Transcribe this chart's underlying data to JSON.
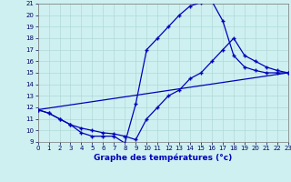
{
  "title": "Graphe des températures (°c)",
  "bg_color": "#cef0f0",
  "line_color": "#0000bb",
  "grid_color": "#b0d8d8",
  "xlim": [
    0,
    23
  ],
  "ylim": [
    9,
    21
  ],
  "xticks": [
    0,
    1,
    2,
    3,
    4,
    5,
    6,
    7,
    8,
    9,
    10,
    11,
    12,
    13,
    14,
    15,
    16,
    17,
    18,
    19,
    20,
    21,
    22,
    23
  ],
  "yticks": [
    9,
    10,
    11,
    12,
    13,
    14,
    15,
    16,
    17,
    18,
    19,
    20,
    21
  ],
  "curve1_x": [
    0,
    1,
    2,
    3,
    4,
    5,
    6,
    7,
    8,
    9,
    10,
    11,
    12,
    13,
    14,
    15,
    16,
    17,
    18,
    19,
    20,
    21,
    22,
    23
  ],
  "curve1_y": [
    11.8,
    11.5,
    11.0,
    10.5,
    9.8,
    9.5,
    9.5,
    9.5,
    8.9,
    12.3,
    17.0,
    18.0,
    19.0,
    20.0,
    20.8,
    21.1,
    21.2,
    19.5,
    16.5,
    15.5,
    15.2,
    15.0,
    15.0,
    15.0
  ],
  "curve2_x": [
    0,
    1,
    2,
    3,
    4,
    5,
    6,
    7,
    8,
    9,
    10,
    11,
    12,
    13,
    14,
    15,
    16,
    17,
    18,
    19,
    20,
    21,
    22,
    23
  ],
  "curve2_y": [
    11.8,
    11.5,
    11.0,
    10.5,
    10.2,
    10.0,
    9.8,
    9.7,
    9.5,
    9.2,
    11.0,
    12.0,
    13.0,
    13.5,
    14.5,
    15.0,
    16.0,
    17.0,
    18.0,
    16.5,
    16.0,
    15.5,
    15.2,
    15.0
  ],
  "curve3_x": [
    0,
    23
  ],
  "curve3_y": [
    11.8,
    15.0
  ]
}
